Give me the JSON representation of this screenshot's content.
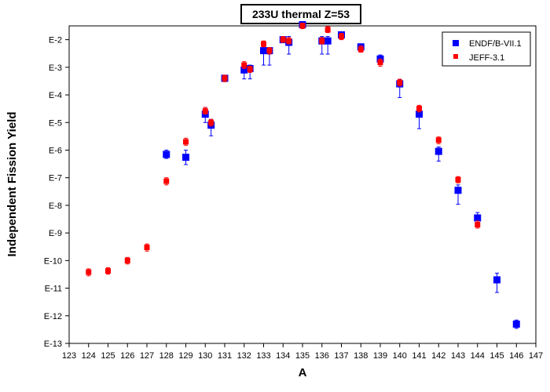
{
  "chart_data": {
    "type": "scatter",
    "title": "233U thermal Z=53",
    "xlabel": "A",
    "ylabel": "Independent Fission Yield",
    "xlim": [
      123,
      147
    ],
    "ylim_log10": [
      -13,
      -1.5
    ],
    "y_scale": "log",
    "x_ticks": [
      "123",
      "124",
      "125",
      "126",
      "127",
      "128",
      "129",
      "130",
      "131",
      "132",
      "133",
      "134",
      "135",
      "136",
      "137",
      "138",
      "139",
      "140",
      "141",
      "142",
      "143",
      "144",
      "145",
      "146",
      "147"
    ],
    "y_ticks": [
      {
        "label": "E-2",
        "exp": -2
      },
      {
        "label": "E-3",
        "exp": -3
      },
      {
        "label": "E-4",
        "exp": -4
      },
      {
        "label": "E-5",
        "exp": -5
      },
      {
        "label": "E-6",
        "exp": -6
      },
      {
        "label": "E-7",
        "exp": -7
      },
      {
        "label": "E-8",
        "exp": -8
      },
      {
        "label": "E-9",
        "exp": -9
      },
      {
        "label": "E-10",
        "exp": -10
      },
      {
        "label": "E-11",
        "exp": -11
      },
      {
        "label": "E-12",
        "exp": -12
      },
      {
        "label": "E-13",
        "exp": -13
      }
    ],
    "legend_position": "top-right",
    "grid": false,
    "series": [
      {
        "name": "ENDF/B-VII.1",
        "color": "#0000ff",
        "marker": "square-large",
        "points": [
          {
            "x": 128,
            "y": 7e-07,
            "lo": 5e-07,
            "hi": 1e-06
          },
          {
            "x": 129,
            "y": 5.5e-07,
            "lo": 3e-07,
            "hi": 1e-06
          },
          {
            "x": 130,
            "y": 2e-05,
            "lo": 1e-05,
            "hi": 3.5e-05
          },
          {
            "x": 130.3,
            "y": 8e-06,
            "lo": 3.3e-06,
            "hi": 1.3e-05
          },
          {
            "x": 131,
            "y": 0.0004,
            "lo": 0.00032,
            "hi": 0.0005
          },
          {
            "x": 132,
            "y": 0.0008,
            "lo": 0.00038,
            "hi": 0.0013
          },
          {
            "x": 132.3,
            "y": 0.0009,
            "lo": 0.00038,
            "hi": 0.0012
          },
          {
            "x": 133,
            "y": 0.004,
            "lo": 0.0012,
            "hi": 0.006
          },
          {
            "x": 133.3,
            "y": 0.004,
            "lo": 0.0012,
            "hi": 0.005
          },
          {
            "x": 134,
            "y": 0.01,
            "lo": 0.008,
            "hi": 0.012
          },
          {
            "x": 134.3,
            "y": 0.008,
            "lo": 0.003,
            "hi": 0.013
          },
          {
            "x": 135,
            "y": 0.035,
            "lo": 0.03,
            "hi": 0.04
          },
          {
            "x": 136,
            "y": 0.009,
            "lo": 0.003,
            "hi": 0.013
          },
          {
            "x": 136.3,
            "y": 0.009,
            "lo": 0.003,
            "hi": 0.013
          },
          {
            "x": 137,
            "y": 0.015,
            "lo": 0.011,
            "hi": 0.018
          },
          {
            "x": 138,
            "y": 0.0055,
            "lo": 0.004,
            "hi": 0.007
          },
          {
            "x": 139,
            "y": 0.002,
            "lo": 0.0014,
            "hi": 0.0028
          },
          {
            "x": 140,
            "y": 0.00025,
            "lo": 8e-05,
            "hi": 0.00035
          },
          {
            "x": 141,
            "y": 2e-05,
            "lo": 6e-06,
            "hi": 3.8e-05
          },
          {
            "x": 142,
            "y": 9e-07,
            "lo": 4e-07,
            "hi": 1.3e-06
          },
          {
            "x": 143,
            "y": 3.5e-08,
            "lo": 1.1e-08,
            "hi": 5.5e-08
          },
          {
            "x": 144,
            "y": 3.5e-09,
            "lo": 1.8e-09,
            "hi": 5.5e-09
          },
          {
            "x": 145,
            "y": 2e-11,
            "lo": 7e-12,
            "hi": 3.5e-11
          },
          {
            "x": 146,
            "y": 5e-13,
            "lo": 3.5e-13,
            "hi": 7e-13
          }
        ]
      },
      {
        "name": "JEFF-3.1",
        "color": "#ff0000",
        "marker": "square-small",
        "points": [
          {
            "x": 124,
            "y": 3.8e-11,
            "lo": 2.8e-11,
            "hi": 5e-11
          },
          {
            "x": 125,
            "y": 4.2e-11,
            "lo": 3.2e-11,
            "hi": 5.5e-11
          },
          {
            "x": 126,
            "y": 1e-10,
            "lo": 7.5e-11,
            "hi": 1.3e-10
          },
          {
            "x": 127,
            "y": 3e-10,
            "lo": 2.2e-10,
            "hi": 4e-10
          },
          {
            "x": 128,
            "y": 7.5e-08,
            "lo": 5.5e-08,
            "hi": 1e-07
          },
          {
            "x": 129,
            "y": 2e-06,
            "lo": 1.5e-06,
            "hi": 2.7e-06
          },
          {
            "x": 130,
            "y": 2.6e-05,
            "lo": 2e-05,
            "hi": 3.5e-05
          },
          {
            "x": 130.3,
            "y": 1e-05,
            "lo": 7.5e-06,
            "hi": 1.3e-05
          },
          {
            "x": 131,
            "y": 0.0004,
            "lo": 0.0003,
            "hi": 0.00052
          },
          {
            "x": 132,
            "y": 0.0012,
            "lo": 0.0009,
            "hi": 0.0016
          },
          {
            "x": 132.3,
            "y": 0.00085,
            "lo": 0.00065,
            "hi": 0.0011
          },
          {
            "x": 133,
            "y": 0.007,
            "lo": 0.0055,
            "hi": 0.009
          },
          {
            "x": 133.3,
            "y": 0.004,
            "lo": 0.003,
            "hi": 0.0052
          },
          {
            "x": 134,
            "y": 0.01,
            "lo": 0.008,
            "hi": 0.013
          },
          {
            "x": 134.3,
            "y": 0.009,
            "lo": 0.007,
            "hi": 0.012
          },
          {
            "x": 135,
            "y": 0.032,
            "lo": 0.025,
            "hi": 0.04
          },
          {
            "x": 136,
            "y": 0.009,
            "lo": 0.007,
            "hi": 0.012
          },
          {
            "x": 136.3,
            "y": 0.023,
            "lo": 0.018,
            "hi": 0.03
          },
          {
            "x": 137,
            "y": 0.013,
            "lo": 0.01,
            "hi": 0.017
          },
          {
            "x": 138,
            "y": 0.0045,
            "lo": 0.0035,
            "hi": 0.006
          },
          {
            "x": 139,
            "y": 0.0015,
            "lo": 0.0011,
            "hi": 0.002
          },
          {
            "x": 140,
            "y": 0.00028,
            "lo": 0.00021,
            "hi": 0.00037
          },
          {
            "x": 141,
            "y": 3.2e-05,
            "lo": 2.4e-05,
            "hi": 4.2e-05
          },
          {
            "x": 142,
            "y": 2.3e-06,
            "lo": 1.7e-06,
            "hi": 3e-06
          },
          {
            "x": 143,
            "y": 8.5e-08,
            "lo": 6.5e-08,
            "hi": 1.1e-07
          },
          {
            "x": 144,
            "y": 2e-09,
            "lo": 1.5e-09,
            "hi": 2.7e-09
          }
        ]
      }
    ]
  }
}
